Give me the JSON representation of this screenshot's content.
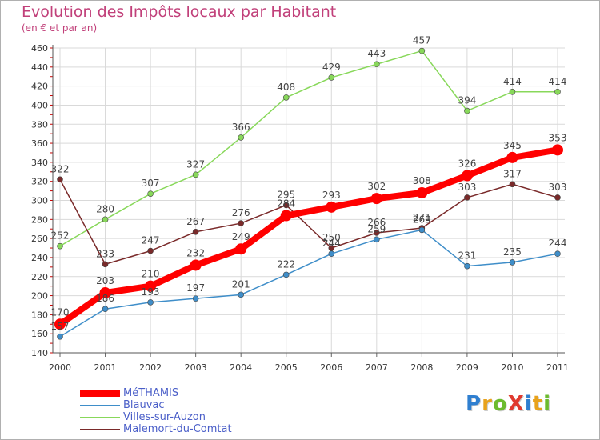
{
  "title": "Evolution des Impôts locaux par Habitant",
  "subtitle": "(en € et par an)",
  "logo_text": "ProXiti",
  "chart_data": {
    "type": "line",
    "x": [
      "2000",
      "2001",
      "2002",
      "2003",
      "2004",
      "2005",
      "2006",
      "2007",
      "2008",
      "2009",
      "2010",
      "2011"
    ],
    "ylim": [
      140,
      460
    ],
    "yticks": [
      140,
      160,
      180,
      200,
      220,
      240,
      260,
      280,
      300,
      320,
      340,
      360,
      380,
      400,
      420,
      440,
      460
    ],
    "grid": true,
    "legend_position": "bottom-left",
    "series": [
      {
        "name": "MéTHAMIS",
        "color": "#ff0000",
        "values": [
          170,
          203,
          210,
          232,
          249,
          284,
          293,
          302,
          308,
          326,
          345,
          353
        ]
      },
      {
        "name": "Blauvac",
        "color": "#3f8ec9",
        "values": [
          157,
          186,
          193,
          197,
          201,
          222,
          244,
          259,
          269,
          231,
          235,
          244
        ]
      },
      {
        "name": "Villes-sur-Auzon",
        "color": "#88d85a",
        "values": [
          252,
          280,
          307,
          327,
          366,
          408,
          429,
          443,
          457,
          394,
          414,
          414
        ]
      },
      {
        "name": "Malemort-du-Comtat",
        "color": "#7a2a2a",
        "values": [
          322,
          233,
          247,
          267,
          276,
          295,
          250,
          266,
          271,
          303,
          317,
          303
        ]
      }
    ]
  }
}
